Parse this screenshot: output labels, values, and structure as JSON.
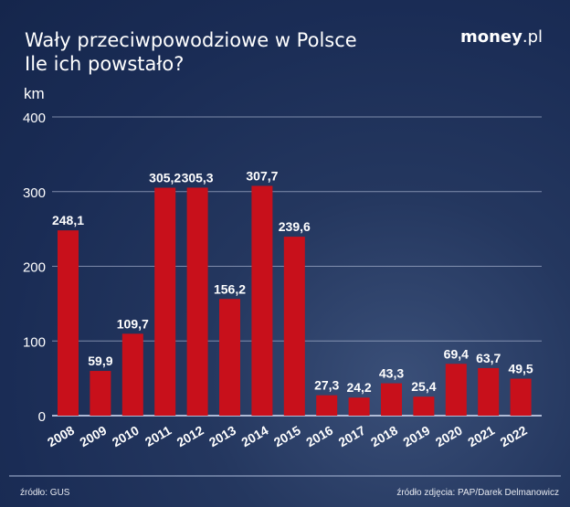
{
  "header": {
    "title_line1": "Wały przeciwpowodziowe w Polsce",
    "title_line2": "Ile ich powstało?",
    "logo_bold": "money",
    "logo_light": ".pl"
  },
  "footer": {
    "source": "źródło: GUS",
    "photo_source": "źródło zdjęcia: PAP/Darek Delmanowicz"
  },
  "chart_data": {
    "type": "bar",
    "title": "Wały przeciwpowodziowe w Polsce",
    "subtitle": "Ile ich powstało?",
    "ylabel": "km",
    "ylim": [
      0,
      400
    ],
    "yticks": [
      0,
      100,
      200,
      300,
      400
    ],
    "grid": true,
    "categories": [
      "2008",
      "2009",
      "2010",
      "2011",
      "2012",
      "2013",
      "2014",
      "2015",
      "2016",
      "2017",
      "2018",
      "2019",
      "2020",
      "2021",
      "2022"
    ],
    "values": [
      248.1,
      59.9,
      109.7,
      305.2,
      305.3,
      156.2,
      307.7,
      239.6,
      27.3,
      24.2,
      43.3,
      25.4,
      69.4,
      63.7,
      49.5
    ],
    "labels": [
      "248,1",
      "59,9",
      "109,7",
      "305,2",
      "305,3",
      "156,2",
      "307,7",
      "239,6",
      "27,3",
      "24,2",
      "43,3",
      "25,4",
      "69,4",
      "63,7",
      "49,5"
    ],
    "colors": {
      "bar": "#c8101b",
      "background": "#1c2e58",
      "text": "#ffffff"
    }
  }
}
